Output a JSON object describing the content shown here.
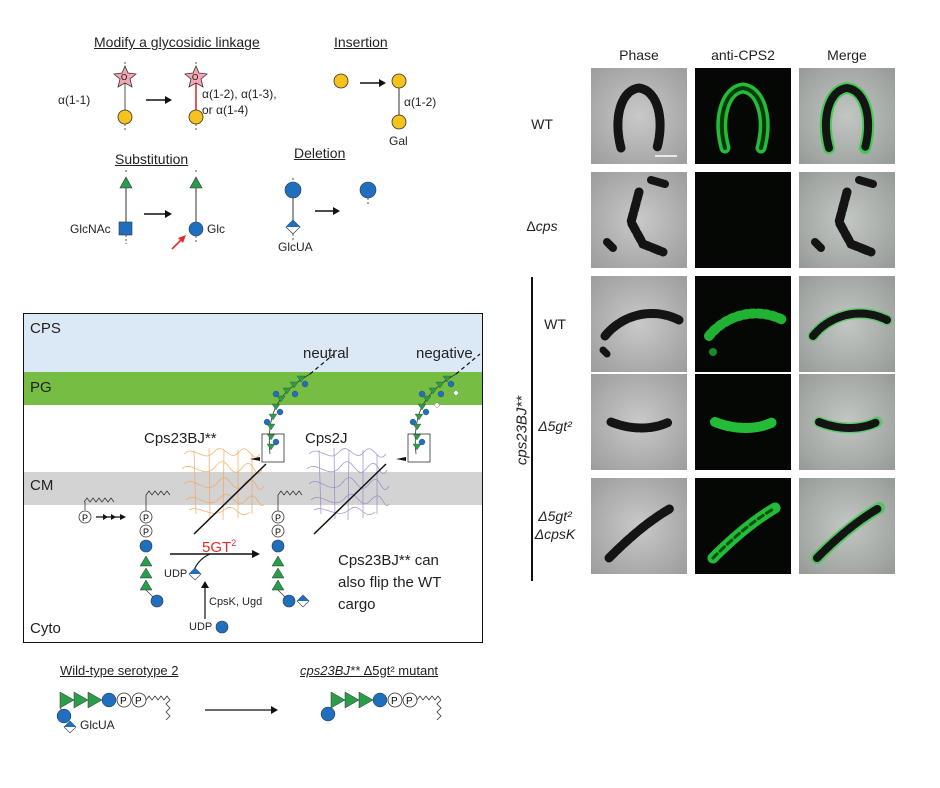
{
  "top_schematics": {
    "modify": {
      "title": "Modify a glycosidic linkage",
      "from_linkage": "α(1-1)",
      "to_linkage_line1": "α(1-2), α(1-3),",
      "to_linkage_line2": "or α(1-4)"
    },
    "insertion": {
      "title": "Insertion",
      "linkage": "α(1-2)",
      "residue": "Gal"
    },
    "substitution": {
      "title": "Substitution",
      "from_residue": "GlcNAc",
      "to_residue": "Glc"
    },
    "deletion": {
      "title": "Deletion",
      "residue": "GlcUA"
    }
  },
  "membrane_diagram": {
    "layers": {
      "cps": "CPS",
      "pg": "PG",
      "cm": "CM",
      "cyto": "Cyto"
    },
    "labels": {
      "neutral": "neutral",
      "negative": "negative",
      "flippase_mutant": "Cps23BJ**",
      "flippase_wt": "Cps2J",
      "enzyme": "5GT",
      "enzyme_sup": "2",
      "udp_top": "UDP",
      "udp_bottom": "UDP",
      "enzymes_small": "CpsK, Ugd",
      "note_line1": "Cps23BJ** can",
      "note_line2": "also flip the WT",
      "note_line3": "cargo",
      "phosphate": "P"
    },
    "colors": {
      "cps_layer": "#dbe9f6",
      "pg_layer": "#76bd43",
      "cm_layer": "#d3d3d4",
      "glc_blue": "#1f6fbe",
      "rha_green": "#2a9d4a",
      "gal_yellow": "#f6c21b",
      "enzyme_red": "#e32d2d",
      "flippase_orange": "#f2a65a",
      "flippase_purple": "#9a85c6"
    }
  },
  "bottom_schematic": {
    "wt_title": "Wild-type serotype 2",
    "mutant_title_italic": "cps23BJ**",
    "mutant_title_rest": " Δ5gt² mutant",
    "glcua": "GlcUA"
  },
  "microscopy": {
    "columns": [
      "Phase",
      "anti-CPS2",
      "Merge"
    ],
    "rows": [
      {
        "label": "WT",
        "italic": false
      },
      {
        "label": "Δcps",
        "italic_part": "cps"
      },
      {
        "label": "WT",
        "italic": false
      },
      {
        "label": "Δ5gt²",
        "italic": true
      },
      {
        "label": "Δ5gt²",
        "label2": "ΔcpsK",
        "italic": true
      }
    ],
    "group_label": "cps23BJ**",
    "colors": {
      "fluor_green": "#26d03c",
      "cell_dark": "#141414"
    }
  }
}
